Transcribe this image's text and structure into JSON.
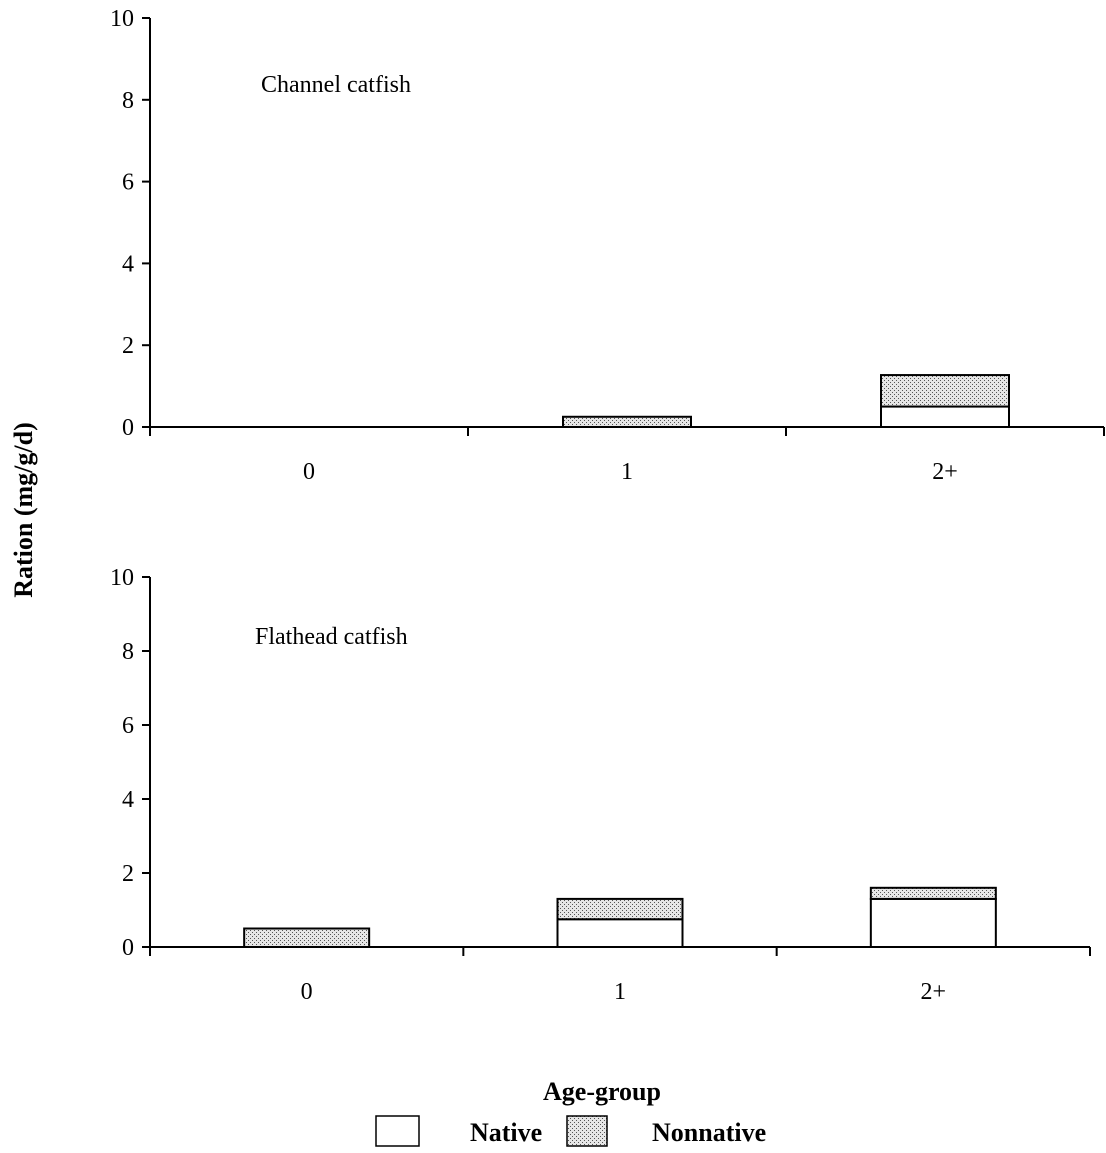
{
  "ylabel": "Ration (mg/g/d)",
  "xlabel": "Age-group",
  "legend": {
    "native_label": "Native",
    "nonnative_label": "Nonnative"
  },
  "colors": {
    "native_fill": "#ffffff",
    "nonnative_pattern": "crosshatch-gray",
    "axis": "#000000"
  },
  "chart_data": [
    {
      "type": "bar",
      "stacked": true,
      "annotation": "Channel catfish",
      "categories": [
        "0",
        "1",
        "2+"
      ],
      "series": [
        {
          "name": "Native",
          "values": [
            0,
            0,
            0.5
          ]
        },
        {
          "name": "Nonnative",
          "values": [
            0,
            0.25,
            0.77
          ]
        }
      ],
      "ylim": [
        0,
        10
      ],
      "yticks": [
        "0",
        "2",
        "4",
        "6",
        "8",
        "10"
      ]
    },
    {
      "type": "bar",
      "stacked": true,
      "annotation": "Flathead catfish",
      "categories": [
        "0",
        "1",
        "2+"
      ],
      "series": [
        {
          "name": "Native",
          "values": [
            0,
            0.75,
            1.3
          ]
        },
        {
          "name": "Nonnative",
          "values": [
            0.5,
            0.55,
            0.3
          ]
        }
      ],
      "ylim": [
        0,
        10
      ],
      "yticks": [
        "0",
        "2",
        "4",
        "6",
        "8",
        "10"
      ]
    }
  ]
}
